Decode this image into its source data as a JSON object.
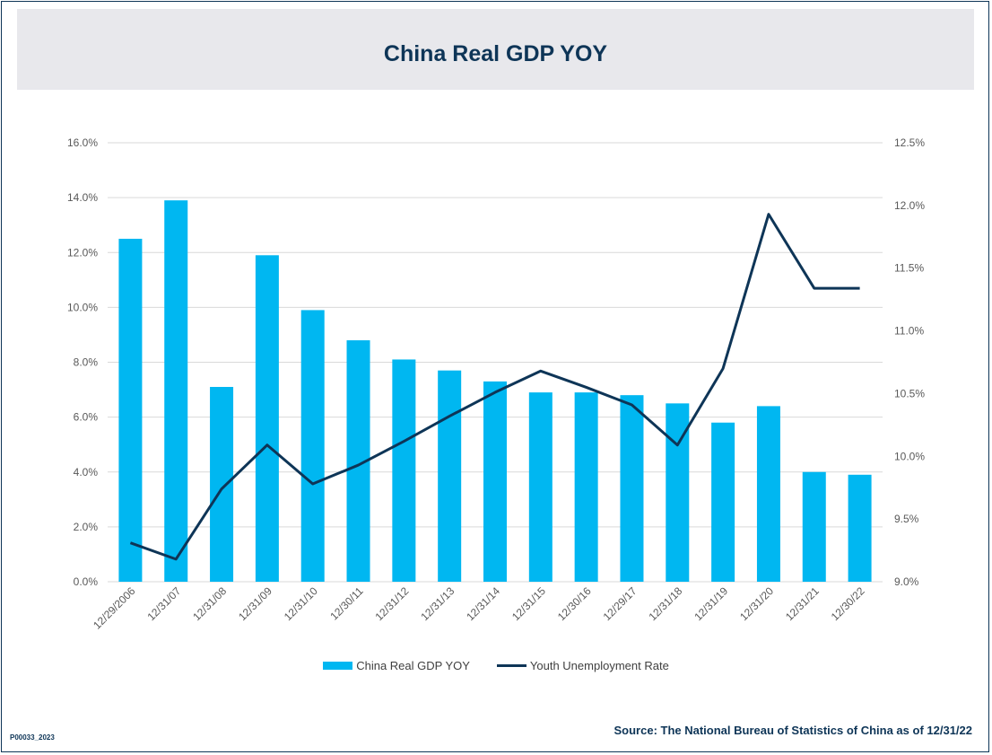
{
  "header": {
    "title": "China Real GDP YOY"
  },
  "footer": {
    "source": "Source: The National Bureau of Statistics of China as of 12/31/22",
    "code": "P00033_2023"
  },
  "colors": {
    "bar": "#00b7f1",
    "line": "#0e3557",
    "grid": "#d9d9d9",
    "text": "#595959"
  },
  "chart_data": {
    "type": "bar",
    "categories": [
      "12/29/2006",
      "12/31/07",
      "12/31/08",
      "12/31/09",
      "12/31/10",
      "12/30/11",
      "12/31/12",
      "12/31/13",
      "12/31/14",
      "12/31/15",
      "12/30/16",
      "12/29/17",
      "12/31/18",
      "12/31/19",
      "12/31/20",
      "12/31/21",
      "12/30/22"
    ],
    "series": [
      {
        "name": "China Real GDP YOY",
        "type": "bar",
        "axis": "left",
        "values": [
          12.5,
          13.9,
          7.1,
          11.9,
          9.9,
          8.8,
          8.1,
          7.7,
          7.3,
          6.9,
          6.9,
          6.8,
          6.5,
          5.8,
          6.4,
          4.0,
          3.9
        ]
      },
      {
        "name": "Youth Unemployment Rate",
        "type": "line",
        "axis": "right",
        "values": [
          9.31,
          9.18,
          9.74,
          10.09,
          9.78,
          9.93,
          10.12,
          10.32,
          10.51,
          10.68,
          10.55,
          10.41,
          10.09,
          10.7,
          11.93,
          11.34,
          11.34
        ]
      }
    ],
    "y_left": {
      "min": 0,
      "max": 16,
      "ticks": [
        "0.0%",
        "2.0%",
        "4.0%",
        "6.0%",
        "8.0%",
        "10.0%",
        "12.0%",
        "14.0%",
        "16.0%"
      ]
    },
    "y_right": {
      "min": 9.0,
      "max": 12.5,
      "ticks": [
        "9.0%",
        "9.5%",
        "10.0%",
        "10.5%",
        "11.0%",
        "11.5%",
        "12.0%",
        "12.5%"
      ]
    },
    "grid": true,
    "legend": "bottom"
  }
}
